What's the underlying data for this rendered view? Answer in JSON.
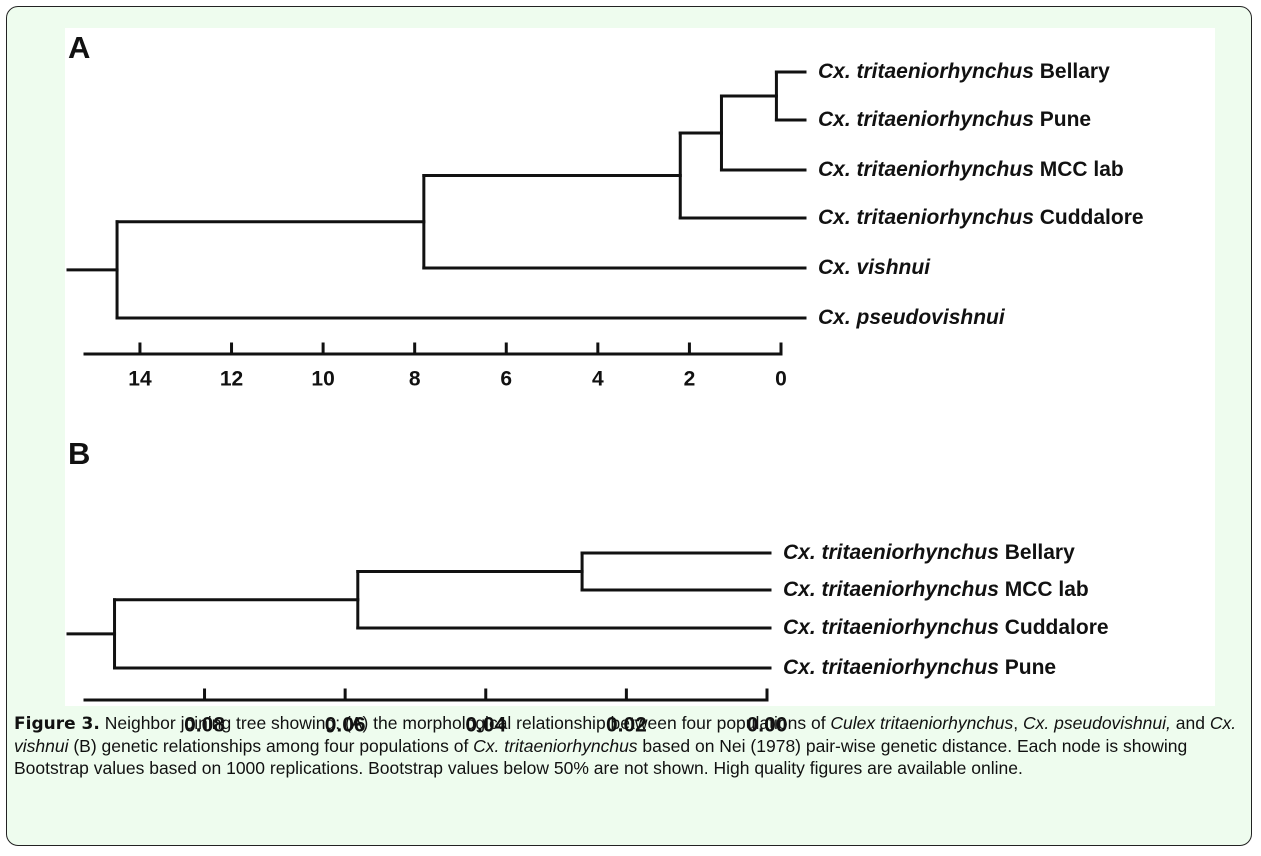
{
  "figure": {
    "panels": [
      {
        "label": "A",
        "xlim": [
          15.2,
          0
        ],
        "xticks": [
          14,
          12,
          10,
          8,
          6,
          4,
          2,
          0
        ],
        "tree": {
          "height": 14.5,
          "children": [
            {
              "height": 7.8,
              "children": [
                {
                  "height": 2.2,
                  "children": [
                    {
                      "height": 1.3,
                      "children": [
                        {
                          "height": 0.1,
                          "children": [
                            {
                              "species": "Cx. tritaeniorhynchus",
                              "population": "Bellary"
                            },
                            {
                              "species": "Cx. tritaeniorhynchus",
                              "population": "Pune"
                            }
                          ]
                        },
                        {
                          "species": "Cx. tritaeniorhynchus",
                          "population": "MCC lab"
                        }
                      ]
                    },
                    {
                      "species": "Cx. tritaeniorhynchus",
                      "population": "Cuddalore"
                    }
                  ]
                },
                {
                  "species": "Cx. vishnui"
                }
              ]
            },
            {
              "species": "Cx. pseudovishnui"
            }
          ]
        }
      },
      {
        "label": "B",
        "xlim": [
          0.097,
          0
        ],
        "xticks": [
          0.08,
          0.06,
          0.04,
          0.02,
          {
            "value": 0,
            "label": "0.00"
          }
        ],
        "tree": {
          "height": 0.0928,
          "children": [
            {
              "height": 0.0582,
              "children": [
                {
                  "height": 0.0263,
                  "children": [
                    {
                      "species": "Cx. tritaeniorhynchus",
                      "population": "Bellary"
                    },
                    {
                      "species": "Cx. tritaeniorhynchus",
                      "population": "MCC lab"
                    }
                  ]
                },
                {
                  "species": "Cx. tritaeniorhynchus",
                  "population": "Cuddalore"
                }
              ]
            },
            {
              "species": "Cx. tritaeniorhynchus",
              "population": "Pune"
            }
          ]
        }
      }
    ],
    "caption": [
      {
        "text": "Figure 3.",
        "style": "bold"
      },
      {
        "text": " Neighbor joining tree showing: (A) the morphological relationship between four populations of ",
        "style": "normal"
      },
      {
        "text": "Culex tritaeniorhynchus",
        "style": "italic"
      },
      {
        "text": ", ",
        "style": "normal"
      },
      {
        "text": "Cx. pseudovishnui,",
        "style": "italic"
      },
      {
        "text": " and ",
        "style": "normal"
      },
      {
        "text": "Cx. vishnui",
        "style": "italic"
      },
      {
        "text": " (B) genetic relationships among four populations of ",
        "style": "normal"
      },
      {
        "text": "Cx. tritaeniorhynchus",
        "style": "italic"
      },
      {
        "text": " based on Nei (1978) pair-wise genetic distance. Each node is showing Bootstrap values based on 1000 replications. Bootstrap values below 50% are not shown. High quality figures are available online.",
        "style": "normal"
      }
    ]
  }
}
